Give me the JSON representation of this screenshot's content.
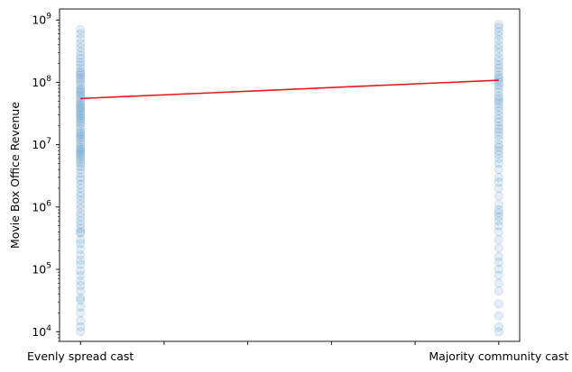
{
  "chart_data": {
    "type": "scatter",
    "ylabel": "Movie Box Office Revenue",
    "xlabel": "",
    "y_scale": "log",
    "ylim": [
      7000,
      1500000000
    ],
    "xlim": [
      -0.05,
      1.05
    ],
    "grid": false,
    "x_ticks": [
      {
        "value": 0,
        "label": "Evenly spread cast"
      },
      {
        "value": 0.2,
        "label": ""
      },
      {
        "value": 0.4,
        "label": ""
      },
      {
        "value": 0.6,
        "label": ""
      },
      {
        "value": 0.8,
        "label": ""
      },
      {
        "value": 1,
        "label": "Majority community cast"
      }
    ],
    "y_ticks": [
      {
        "value": 10000,
        "base": "10",
        "exp": "4"
      },
      {
        "value": 100000,
        "base": "10",
        "exp": "5"
      },
      {
        "value": 1000000,
        "base": "10",
        "exp": "6"
      },
      {
        "value": 10000000,
        "base": "10",
        "exp": "7"
      },
      {
        "value": 100000000,
        "base": "10",
        "exp": "8"
      },
      {
        "value": 1000000000,
        "base": "10",
        "exp": "9"
      }
    ],
    "series": [
      {
        "color": "#1f77b4",
        "opacity": 0.12,
        "points": [
          {
            "x": 0,
            "y": 10000
          },
          {
            "x": 0,
            "y": 12000
          },
          {
            "x": 0,
            "y": 15000
          },
          {
            "x": 0,
            "y": 20000
          },
          {
            "x": 0,
            "y": 25000
          },
          {
            "x": 0,
            "y": 32000
          },
          {
            "x": 0,
            "y": 35000
          },
          {
            "x": 0,
            "y": 45000
          },
          {
            "x": 0,
            "y": 55000
          },
          {
            "x": 0,
            "y": 65000
          },
          {
            "x": 0,
            "y": 80000
          },
          {
            "x": 0,
            "y": 95000
          },
          {
            "x": 0,
            "y": 120000
          },
          {
            "x": 0,
            "y": 140000
          },
          {
            "x": 0,
            "y": 170000
          },
          {
            "x": 0,
            "y": 210000
          },
          {
            "x": 0,
            "y": 260000
          },
          {
            "x": 0,
            "y": 300000
          },
          {
            "x": 0,
            "y": 380000
          },
          {
            "x": 0,
            "y": 400000
          },
          {
            "x": 0,
            "y": 450000
          },
          {
            "x": 0,
            "y": 520000
          },
          {
            "x": 0,
            "y": 600000
          },
          {
            "x": 0,
            "y": 700000
          },
          {
            "x": 0,
            "y": 800000
          },
          {
            "x": 0,
            "y": 950000
          },
          {
            "x": 0,
            "y": 1100000
          },
          {
            "x": 0,
            "y": 1300000
          },
          {
            "x": 0,
            "y": 1500000
          },
          {
            "x": 0,
            "y": 1700000
          },
          {
            "x": 0,
            "y": 2000000
          },
          {
            "x": 0,
            "y": 2300000
          },
          {
            "x": 0,
            "y": 2700000
          },
          {
            "x": 0,
            "y": 3000000
          },
          {
            "x": 0,
            "y": 3500000
          },
          {
            "x": 0,
            "y": 4000000
          },
          {
            "x": 0,
            "y": 4500000
          },
          {
            "x": 0,
            "y": 5000000
          },
          {
            "x": 0,
            "y": 5500000
          },
          {
            "x": 0,
            "y": 6000000
          },
          {
            "x": 0,
            "y": 6500000
          },
          {
            "x": 0,
            "y": 7000000
          },
          {
            "x": 0,
            "y": 7500000
          },
          {
            "x": 0,
            "y": 8000000
          },
          {
            "x": 0,
            "y": 8500000
          },
          {
            "x": 0,
            "y": 9000000
          },
          {
            "x": 0,
            "y": 10000000
          },
          {
            "x": 0,
            "y": 11000000
          },
          {
            "x": 0,
            "y": 12000000
          },
          {
            "x": 0,
            "y": 13000000
          },
          {
            "x": 0,
            "y": 14000000
          },
          {
            "x": 0,
            "y": 15000000
          },
          {
            "x": 0,
            "y": 16000000
          },
          {
            "x": 0,
            "y": 18000000
          },
          {
            "x": 0,
            "y": 20000000
          },
          {
            "x": 0,
            "y": 22000000
          },
          {
            "x": 0,
            "y": 24000000
          },
          {
            "x": 0,
            "y": 26000000
          },
          {
            "x": 0,
            "y": 28000000
          },
          {
            "x": 0,
            "y": 30000000
          },
          {
            "x": 0,
            "y": 32000000
          },
          {
            "x": 0,
            "y": 35000000
          },
          {
            "x": 0,
            "y": 38000000
          },
          {
            "x": 0,
            "y": 40000000
          },
          {
            "x": 0,
            "y": 43000000
          },
          {
            "x": 0,
            "y": 46000000
          },
          {
            "x": 0,
            "y": 50000000
          },
          {
            "x": 0,
            "y": 55000000
          },
          {
            "x": 0,
            "y": 60000000
          },
          {
            "x": 0,
            "y": 65000000
          },
          {
            "x": 0,
            "y": 70000000
          },
          {
            "x": 0,
            "y": 75000000
          },
          {
            "x": 0,
            "y": 80000000
          },
          {
            "x": 0,
            "y": 90000000
          },
          {
            "x": 0,
            "y": 100000000
          },
          {
            "x": 0,
            "y": 110000000
          },
          {
            "x": 0,
            "y": 120000000
          },
          {
            "x": 0,
            "y": 130000000
          },
          {
            "x": 0,
            "y": 140000000
          },
          {
            "x": 0,
            "y": 150000000
          },
          {
            "x": 0,
            "y": 170000000
          },
          {
            "x": 0,
            "y": 190000000
          },
          {
            "x": 0,
            "y": 210000000
          },
          {
            "x": 0,
            "y": 240000000
          },
          {
            "x": 0,
            "y": 270000000
          },
          {
            "x": 0,
            "y": 310000000
          },
          {
            "x": 0,
            "y": 360000000
          },
          {
            "x": 0,
            "y": 420000000
          },
          {
            "x": 0,
            "y": 500000000
          },
          {
            "x": 0,
            "y": 600000000
          },
          {
            "x": 0,
            "y": 700000000
          },
          {
            "x": 1,
            "y": 10000
          },
          {
            "x": 1,
            "y": 12000
          },
          {
            "x": 1,
            "y": 18000
          },
          {
            "x": 1,
            "y": 28000
          },
          {
            "x": 1,
            "y": 45000
          },
          {
            "x": 1,
            "y": 60000
          },
          {
            "x": 1,
            "y": 80000
          },
          {
            "x": 1,
            "y": 100000
          },
          {
            "x": 1,
            "y": 130000
          },
          {
            "x": 1,
            "y": 160000
          },
          {
            "x": 1,
            "y": 220000
          },
          {
            "x": 1,
            "y": 300000
          },
          {
            "x": 1,
            "y": 400000
          },
          {
            "x": 1,
            "y": 500000
          },
          {
            "x": 1,
            "y": 600000
          },
          {
            "x": 1,
            "y": 700000
          },
          {
            "x": 1,
            "y": 800000
          },
          {
            "x": 1,
            "y": 900000
          },
          {
            "x": 1,
            "y": 1100000
          },
          {
            "x": 1,
            "y": 1500000
          },
          {
            "x": 1,
            "y": 2000000
          },
          {
            "x": 1,
            "y": 2500000
          },
          {
            "x": 1,
            "y": 3000000
          },
          {
            "x": 1,
            "y": 4000000
          },
          {
            "x": 1,
            "y": 5000000
          },
          {
            "x": 1,
            "y": 6000000
          },
          {
            "x": 1,
            "y": 7000000
          },
          {
            "x": 1,
            "y": 8000000
          },
          {
            "x": 1,
            "y": 9000000
          },
          {
            "x": 1,
            "y": 10000000
          },
          {
            "x": 1,
            "y": 12000000
          },
          {
            "x": 1,
            "y": 14000000
          },
          {
            "x": 1,
            "y": 16000000
          },
          {
            "x": 1,
            "y": 18000000
          },
          {
            "x": 1,
            "y": 20000000
          },
          {
            "x": 1,
            "y": 23000000
          },
          {
            "x": 1,
            "y": 26000000
          },
          {
            "x": 1,
            "y": 30000000
          },
          {
            "x": 1,
            "y": 35000000
          },
          {
            "x": 1,
            "y": 40000000
          },
          {
            "x": 1,
            "y": 45000000
          },
          {
            "x": 1,
            "y": 50000000
          },
          {
            "x": 1,
            "y": 55000000
          },
          {
            "x": 1,
            "y": 60000000
          },
          {
            "x": 1,
            "y": 70000000
          },
          {
            "x": 1,
            "y": 80000000
          },
          {
            "x": 1,
            "y": 90000000
          },
          {
            "x": 1,
            "y": 100000000
          },
          {
            "x": 1,
            "y": 110000000
          },
          {
            "x": 1,
            "y": 120000000
          },
          {
            "x": 1,
            "y": 130000000
          },
          {
            "x": 1,
            "y": 150000000
          },
          {
            "x": 1,
            "y": 170000000
          },
          {
            "x": 1,
            "y": 190000000
          },
          {
            "x": 1,
            "y": 220000000
          },
          {
            "x": 1,
            "y": 250000000
          },
          {
            "x": 1,
            "y": 300000000
          },
          {
            "x": 1,
            "y": 350000000
          },
          {
            "x": 1,
            "y": 400000000
          },
          {
            "x": 1,
            "y": 480000000
          },
          {
            "x": 1,
            "y": 560000000
          },
          {
            "x": 1,
            "y": 650000000
          },
          {
            "x": 1,
            "y": 750000000
          },
          {
            "x": 1,
            "y": 850000000
          }
        ]
      }
    ],
    "trend_line": {
      "color": "#e41a1c",
      "points": [
        {
          "x": 0,
          "y": 55000000
        },
        {
          "x": 1,
          "y": 108000000
        }
      ]
    }
  }
}
